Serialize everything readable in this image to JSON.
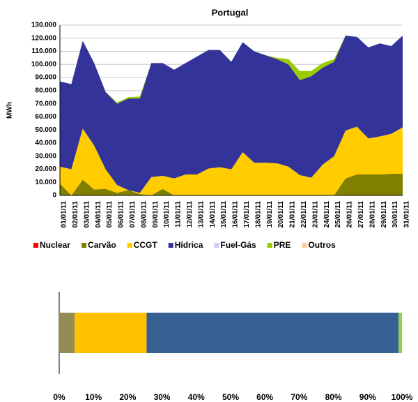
{
  "chart_data": [
    {
      "type": "area",
      "title": "Portugal",
      "y_label": "MWh",
      "categories": [
        "01/01/11",
        "02/01/11",
        "03/01/11",
        "04/01/11",
        "05/01/11",
        "06/01/11",
        "07/01/11",
        "08/01/11",
        "09/01/11",
        "10/01/11",
        "11/01/11",
        "12/01/11",
        "13/01/11",
        "14/01/11",
        "15/01/11",
        "16/01/11",
        "17/01/11",
        "18/01/11",
        "19/01/11",
        "20/01/11",
        "21/01/11",
        "22/01/11",
        "23/01/11",
        "24/01/11",
        "25/01/11",
        "26/01/11",
        "27/01/11",
        "28/01/11",
        "29/01/11",
        "30/01/11",
        "31/01/11"
      ],
      "ylim": [
        0,
        130000
      ],
      "yticks": [
        0,
        {
          "value": 10000,
          "label": "10.000"
        },
        {
          "value": 20000,
          "label": "20.000"
        },
        {
          "value": 30000,
          "label": "30.000"
        },
        {
          "value": 40000,
          "label": "40.000"
        },
        {
          "value": 50000,
          "label": "50.000"
        },
        {
          "value": 60000,
          "label": "60.000"
        },
        {
          "value": 70000,
          "label": "70.000"
        },
        {
          "value": 80000,
          "label": "80.000"
        },
        {
          "value": 90000,
          "label": "90.000"
        },
        {
          "value": 100000,
          "label": "100.000"
        },
        {
          "value": 110000,
          "label": "110.000"
        },
        {
          "value": 120000,
          "label": "120.000"
        },
        {
          "value": 130000,
          "label": "130.000"
        }
      ],
      "grid": true,
      "legend": "bottom",
      "series": [
        {
          "name": "Nuclear",
          "color": "#ff0000",
          "values": [
            0,
            0,
            0,
            0,
            0,
            0,
            0,
            0,
            0,
            0,
            0,
            0,
            0,
            0,
            0,
            0,
            0,
            0,
            0,
            0,
            0,
            0,
            0,
            0,
            0,
            0,
            0,
            0,
            0,
            0,
            0
          ]
        },
        {
          "name": "Carvão",
          "color": "#808000",
          "values": [
            9000,
            0,
            12000,
            4500,
            5000,
            2000,
            4000,
            1000,
            0,
            5000,
            0,
            0,
            0,
            0,
            0,
            0,
            0,
            0,
            0,
            0,
            0,
            0,
            0,
            0,
            0,
            13000,
            16000,
            16000,
            16000,
            16500,
            16500
          ]
        },
        {
          "name": "CCGT",
          "color": "#ffcc00",
          "values": [
            13000,
            20000,
            39000,
            33500,
            15000,
            6000,
            0,
            1000,
            14000,
            10000,
            13000,
            16000,
            16000,
            20500,
            21500,
            20000,
            33000,
            25000,
            25000,
            24500,
            22000,
            15500,
            13500,
            23500,
            30000,
            36500,
            36500,
            27500,
            29000,
            30500,
            35500
          ]
        },
        {
          "name": "Hídrica",
          "color": "#333399",
          "values": [
            65000,
            65000,
            67000,
            63000,
            59000,
            62000,
            70000,
            72000,
            87000,
            86000,
            83000,
            85000,
            90000,
            90500,
            89500,
            82000,
            84000,
            85000,
            82000,
            79500,
            78000,
            72500,
            77500,
            74000,
            72000,
            72500,
            68500,
            69500,
            71000,
            67000,
            70000
          ]
        },
        {
          "name": "Fuel-Gás",
          "color": "#ccccff",
          "values": [
            0,
            0,
            0,
            0,
            0,
            0,
            0,
            0,
            0,
            0,
            0,
            0,
            0,
            0,
            0,
            0,
            0,
            0,
            0,
            0,
            0,
            0,
            0,
            0,
            0,
            0,
            0,
            0,
            0,
            0,
            0
          ]
        },
        {
          "name": "PRE",
          "color": "#99cc00",
          "values": [
            0,
            0,
            0,
            0,
            0,
            1000,
            1000,
            1500,
            0,
            0,
            0,
            0,
            0,
            0,
            0,
            0,
            0,
            0,
            0,
            1000,
            4000,
            7000,
            4000,
            3500,
            2000,
            0,
            0,
            0,
            0,
            0,
            0
          ]
        },
        {
          "name": "Outros",
          "color": "#ffcc99",
          "values": [
            0,
            0,
            0,
            0,
            0,
            0,
            0,
            0,
            0,
            0,
            0,
            0,
            0,
            0,
            0,
            0,
            0,
            0,
            0,
            0,
            0,
            0,
            0,
            0,
            0,
            0,
            0,
            0,
            0,
            0,
            0
          ]
        }
      ]
    },
    {
      "type": "hbar-stacked",
      "categories": [
        null
      ],
      "xlim": [
        0,
        100
      ],
      "xticks": [
        {
          "value": 0,
          "label": "0%"
        },
        {
          "value": 10,
          "label": "10%"
        },
        {
          "value": 20,
          "label": "20%"
        },
        {
          "value": 30,
          "label": "30%"
        },
        {
          "value": 40,
          "label": "40%"
        },
        {
          "value": 50,
          "label": "50%"
        },
        {
          "value": 60,
          "label": "60%"
        },
        {
          "value": 70,
          "label": "70%"
        },
        {
          "value": 80,
          "label": "80%"
        },
        {
          "value": 90,
          "label": "90%"
        },
        {
          "value": 100,
          "label": "100%"
        }
      ],
      "series": [
        {
          "color": "#ff0000",
          "values": [
            0
          ]
        },
        {
          "color": "#948a54",
          "values": [
            4.5
          ]
        },
        {
          "color": "#ffc000",
          "values": [
            21
          ]
        },
        {
          "color": "#366092",
          "values": [
            73.5
          ]
        },
        {
          "color": "#ccccff",
          "values": [
            0
          ]
        },
        {
          "color": "#92d050",
          "values": [
            1
          ]
        },
        {
          "color": "#fac090",
          "values": [
            0
          ]
        }
      ]
    }
  ]
}
